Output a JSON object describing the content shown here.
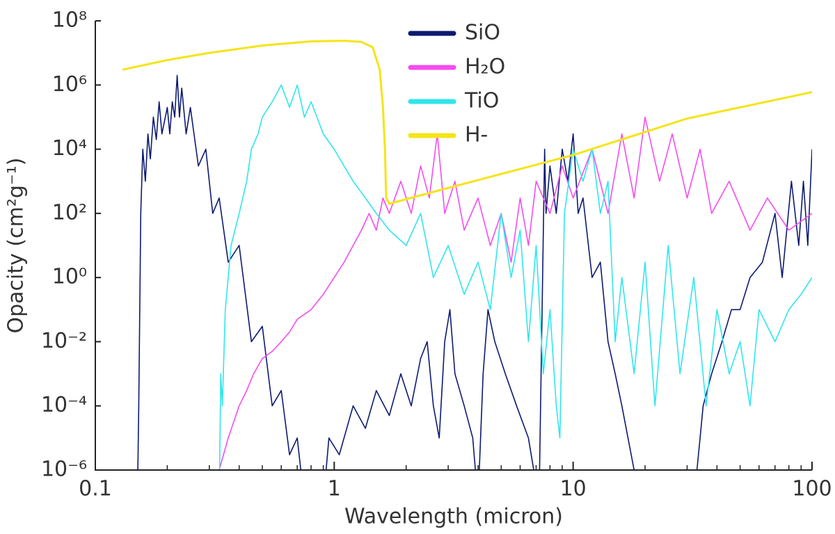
{
  "chart_data": {
    "type": "line",
    "xlabel": "Wavelength (micron)",
    "ylabel": "Opacity (cm²g⁻¹)",
    "xscale": "log",
    "yscale": "log",
    "xlim": [
      0.1,
      100
    ],
    "ylim": [
      1e-06,
      100000000.0
    ],
    "xticks": [
      0.1,
      1,
      10,
      100
    ],
    "xminorticks": [
      0.2,
      0.3,
      0.4,
      0.5,
      0.6,
      0.7,
      0.8,
      0.9,
      2,
      3,
      4,
      5,
      6,
      7,
      8,
      9,
      20,
      30,
      40,
      50,
      60,
      70,
      80,
      90
    ],
    "yticks": [
      {
        "value": 1e-06,
        "label": "10⁻⁶"
      },
      {
        "value": 0.0001,
        "label": "10⁻⁴"
      },
      {
        "value": 0.01,
        "label": "10⁻²"
      },
      {
        "value": 1,
        "label": "10⁰"
      },
      {
        "value": 100,
        "label": "10²"
      },
      {
        "value": 10000,
        "label": "10⁴"
      },
      {
        "value": 1000000,
        "label": "10⁶"
      },
      {
        "value": 100000000,
        "label": "10⁸"
      }
    ],
    "legend": "upper center",
    "series": [
      {
        "name": "SiO",
        "color": "#0c1a70",
        "x": [
          0.15,
          0.152,
          0.155,
          0.158,
          0.162,
          0.166,
          0.17,
          0.175,
          0.18,
          0.185,
          0.19,
          0.2,
          0.205,
          0.21,
          0.215,
          0.22,
          0.225,
          0.23,
          0.24,
          0.25,
          0.27,
          0.29,
          0.31,
          0.33,
          0.36,
          0.4,
          0.45,
          0.5,
          0.55,
          0.6,
          0.65,
          0.7,
          0.75,
          0.9,
          0.95,
          1.05,
          1.2,
          1.35,
          1.5,
          1.7,
          1.9,
          2.1,
          2.3,
          2.45,
          2.6,
          2.75,
          2.9,
          3.05,
          3.2,
          3.5,
          3.8,
          4.0,
          4.2,
          4.4,
          4.7,
          5.2,
          5.8,
          6.5,
          7.2,
          7.6,
          7.7,
          8.0,
          8.5,
          9.0,
          9.5,
          10.0,
          10.5,
          11,
          12,
          13,
          14,
          15,
          16,
          18,
          19,
          32,
          34,
          35,
          38,
          42,
          46,
          50,
          55,
          62,
          70,
          75,
          82,
          88,
          92,
          96,
          100
        ],
        "values": [
          1e-07,
          0.0001,
          100,
          10000,
          1000,
          30000,
          5000,
          100000,
          20000,
          300000,
          30000,
          200000,
          30000,
          300000,
          100000,
          2000000,
          100000,
          800000,
          30000,
          200000,
          3000,
          10000,
          100,
          300,
          3,
          10,
          0.01,
          0.03,
          0.0001,
          0.0003,
          3e-06,
          1e-05,
          1e-07,
          1e-07,
          1e-05,
          3e-06,
          0.0001,
          2e-05,
          0.0003,
          5e-05,
          0.001,
          0.0001,
          0.003,
          0.01,
          0.0001,
          1e-05,
          0.01,
          0.1,
          0.001,
          0.0001,
          1e-05,
          1e-07,
          0.001,
          0.1,
          0.01,
          0.001,
          0.0001,
          1e-05,
          1e-07,
          10000,
          100,
          3000,
          100,
          10000,
          1000,
          30000,
          100,
          300,
          1,
          3,
          0.01,
          0.001,
          0.0001,
          1e-06,
          1e-07,
          1e-07,
          1e-05,
          0.0001,
          0.001,
          0.01,
          0.1,
          0.1,
          1,
          3,
          100,
          1,
          1000,
          10,
          1000,
          10,
          10000
        ]
      },
      {
        "name": "H₂O",
        "color": "#f54cf0",
        "x": [
          0.3,
          0.33,
          0.36,
          0.4,
          0.43,
          0.46,
          0.5,
          0.55,
          0.6,
          0.65,
          0.7,
          0.8,
          0.9,
          1.0,
          1.1,
          1.2,
          1.3,
          1.4,
          1.5,
          1.6,
          1.7,
          1.9,
          2.1,
          2.3,
          2.5,
          2.7,
          2.9,
          3.2,
          3.5,
          4.0,
          4.5,
          5.0,
          5.5,
          6.0,
          6.5,
          7.0,
          8.0,
          9.0,
          10,
          12,
          14,
          16,
          18,
          20,
          23,
          26,
          30,
          34,
          38,
          45,
          55,
          65,
          80,
          100
        ],
        "values": [
          1e-07,
          1e-06,
          1e-05,
          0.0001,
          0.0003,
          0.001,
          0.003,
          0.005,
          0.01,
          0.02,
          0.05,
          0.1,
          0.3,
          1,
          3,
          10,
          30,
          100,
          30,
          300,
          100,
          1000,
          100,
          3000,
          300,
          30000,
          100,
          1000,
          30,
          300,
          10,
          100,
          3,
          300,
          10,
          1000,
          100,
          3000,
          300,
          10000,
          100,
          30000,
          300,
          100000,
          1000,
          30000,
          300,
          10000,
          100,
          1000,
          30,
          300,
          30,
          100
        ]
      },
      {
        "name": "TiO",
        "color": "#2fe6ec",
        "x": [
          0.33,
          0.335,
          0.34,
          0.35,
          0.37,
          0.4,
          0.43,
          0.45,
          0.48,
          0.5,
          0.55,
          0.6,
          0.65,
          0.7,
          0.75,
          0.8,
          0.9,
          1.0,
          1.1,
          1.2,
          1.35,
          1.5,
          1.7,
          2.0,
          2.3,
          2.6,
          3.0,
          3.5,
          4.0,
          4.5,
          5.0,
          5.5,
          6.0,
          6.5,
          7.0,
          7.5,
          8.0,
          8.5,
          8.8,
          9.2,
          10,
          11,
          12,
          13,
          14,
          15,
          16,
          18,
          20,
          22,
          25,
          28,
          32,
          36,
          40,
          45,
          50,
          55,
          60,
          70,
          80,
          90,
          100
        ],
        "values": [
          1e-07,
          0.001,
          0.0001,
          0.1,
          10,
          100,
          1000,
          10000,
          30000,
          100000,
          300000,
          1000000,
          200000,
          1000000,
          100000,
          300000,
          30000,
          10000,
          3000,
          1000,
          300,
          100,
          30,
          10,
          100,
          1,
          10,
          0.3,
          3,
          0.1,
          100,
          1,
          30,
          0.01,
          10,
          0.001,
          0.1,
          0.0001,
          1e-05,
          100,
          10000,
          1000,
          10000,
          100,
          1000,
          0.01,
          1,
          0.001,
          3,
          0.0001,
          10,
          0.001,
          1,
          0.0001,
          0.1,
          0.001,
          0.01,
          0.0001,
          0.1,
          0.01,
          0.1,
          0.3,
          1
        ]
      },
      {
        "name": "H-",
        "color": "#f5e418",
        "x": [
          0.13,
          0.2,
          0.3,
          0.5,
          0.8,
          1.1,
          1.3,
          1.45,
          1.55,
          1.6,
          1.63,
          1.65,
          1.7,
          3,
          10,
          30,
          100
        ],
        "values": [
          3000000,
          6000000,
          10000000,
          17000000,
          23000000,
          24000000,
          22000000,
          15000000,
          3000000,
          200000,
          10000,
          300,
          200,
          620,
          6600,
          90000,
          600000
        ]
      }
    ]
  }
}
